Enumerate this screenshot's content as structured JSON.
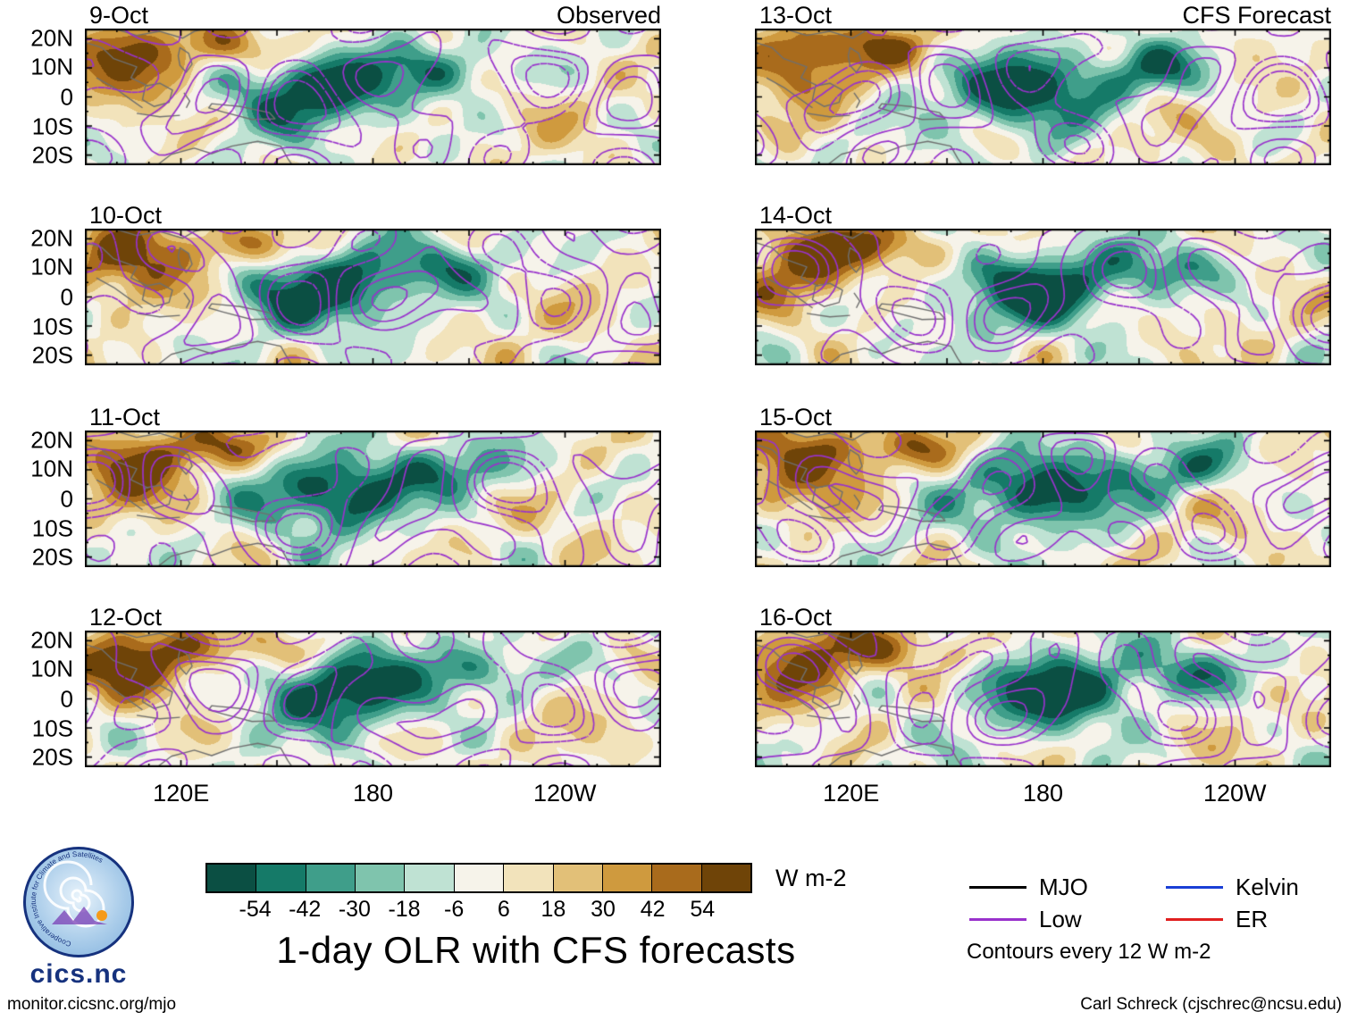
{
  "title": "1-day OLR with CFS forecasts",
  "header": {
    "left_label": "Observed",
    "right_label": "CFS Forecast"
  },
  "panels": [
    {
      "date": "9-Oct",
      "column": "observed"
    },
    {
      "date": "10-Oct",
      "column": "observed"
    },
    {
      "date": "11-Oct",
      "column": "observed"
    },
    {
      "date": "12-Oct",
      "column": "observed"
    },
    {
      "date": "13-Oct",
      "column": "forecast"
    },
    {
      "date": "14-Oct",
      "column": "forecast"
    },
    {
      "date": "15-Oct",
      "column": "forecast"
    },
    {
      "date": "16-Oct",
      "column": "forecast"
    }
  ],
  "axes": {
    "lat_ticks": [
      "20N",
      "10N",
      "0",
      "10S",
      "20S"
    ],
    "lon_ticks": [
      "120E",
      "180",
      "120W"
    ]
  },
  "colorbar": {
    "ticks": [
      "-54",
      "-42",
      "-30",
      "-18",
      "-6",
      "6",
      "18",
      "30",
      "42",
      "54"
    ],
    "colors": [
      "#0b4f43",
      "#157a68",
      "#3f9e8a",
      "#7fc4ad",
      "#bfe2d3",
      "#f6f3ea",
      "#f2e3bb",
      "#e2c078",
      "#cf9a3e",
      "#a96b1c",
      "#6f4408"
    ],
    "units": "W m-2"
  },
  "legend": {
    "items": [
      {
        "label": "MJO",
        "color": "#000000"
      },
      {
        "label": "Low",
        "color": "#9932cc"
      },
      {
        "label": "Kelvin",
        "color": "#1a3fd6"
      },
      {
        "label": "ER",
        "color": "#e01f1f"
      }
    ],
    "note": "Contours every 12 W m-2"
  },
  "logo": {
    "ring_text": "Cooperative Institute for Climate and Satellites",
    "text": "cics.nc"
  },
  "footer": {
    "left": "monitor.cicsnc.org/mjo",
    "right": "Carl Schreck (cjschrec@ncsu.edu)"
  },
  "chart_data": {
    "type": "heatmap",
    "variable": "1-day OLR anomaly shading with wave-filtered contour overlays",
    "units": "W m-2",
    "columns": [
      {
        "header": "Observed",
        "dates": [
          "9-Oct",
          "10-Oct",
          "11-Oct",
          "12-Oct"
        ]
      },
      {
        "header": "CFS Forecast",
        "dates": [
          "13-Oct",
          "14-Oct",
          "15-Oct",
          "16-Oct"
        ]
      }
    ],
    "x_axis": {
      "label": "longitude",
      "ticks": [
        "120E",
        "180",
        "120W"
      ]
    },
    "y_axis": {
      "label": "latitude",
      "ticks": [
        "20N",
        "10N",
        "0",
        "10S",
        "20S"
      ]
    },
    "color_levels": [
      -54,
      -42,
      -30,
      -18,
      -6,
      6,
      18,
      30,
      42,
      54
    ],
    "colors": [
      "#0b4f43",
      "#157a68",
      "#3f9e8a",
      "#7fc4ad",
      "#bfe2d3",
      "#f6f3ea",
      "#f2e3bb",
      "#e2c078",
      "#cf9a3e",
      "#a96b1c",
      "#6f4408"
    ],
    "contour_interval_wm2": 12,
    "contour_types": [
      {
        "name": "MJO",
        "color": "#000000"
      },
      {
        "name": "Low",
        "color": "#9932cc"
      },
      {
        "name": "Kelvin",
        "color": "#1a3fd6"
      },
      {
        "name": "ER",
        "color": "#e01f1f"
      }
    ],
    "layout": {
      "rows": 4,
      "cols": 2,
      "grid": true,
      "legend_position": "bottom-right"
    }
  }
}
